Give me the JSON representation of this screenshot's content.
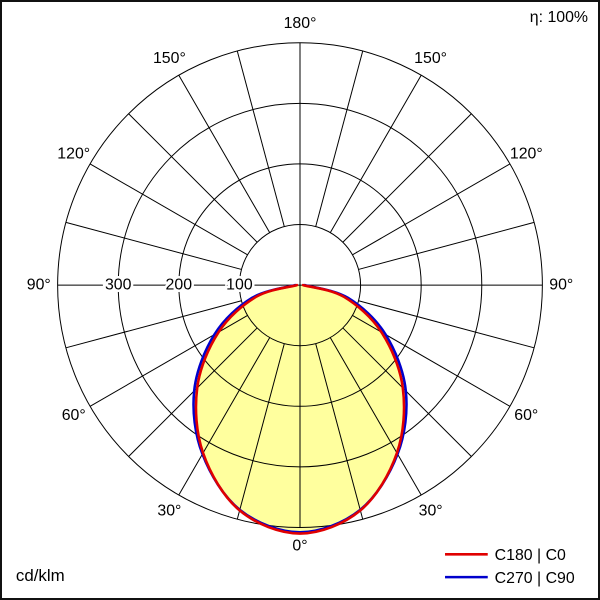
{
  "header": {
    "efficiency_label": "η: 100%"
  },
  "footer": {
    "unit_label": "cd/klm"
  },
  "legend": [
    {
      "label": "C180 | C0",
      "color": "#e00000"
    },
    {
      "label": "C270 | C90",
      "color": "#0000cc"
    }
  ],
  "chart_data": {
    "type": "polar_intensity_distribution",
    "unit": "cd/klm",
    "title": "",
    "efficiency": "100%",
    "angle_labels_deg": [
      0,
      30,
      60,
      90,
      120,
      150,
      180
    ],
    "grid_step_deg": 15,
    "radial_ticks": [
      100,
      200,
      300
    ],
    "radial_max": 400,
    "fill_color": "#ffff9e",
    "grid_color": "#000000",
    "gamma_deg": [
      -90,
      -75,
      -60,
      -45,
      -30,
      -15,
      0,
      15,
      30,
      45,
      60,
      75,
      90
    ],
    "series": [
      {
        "name": "C180 | C0",
        "color": "#e00000",
        "values": [
          5,
          75,
          155,
          240,
          320,
          385,
          410,
          385,
          320,
          240,
          155,
          75,
          5
        ]
      },
      {
        "name": "C270 | C90",
        "color": "#0000cc",
        "values": [
          8,
          82,
          163,
          247,
          322,
          384,
          408,
          384,
          322,
          247,
          163,
          82,
          8
        ]
      }
    ]
  }
}
